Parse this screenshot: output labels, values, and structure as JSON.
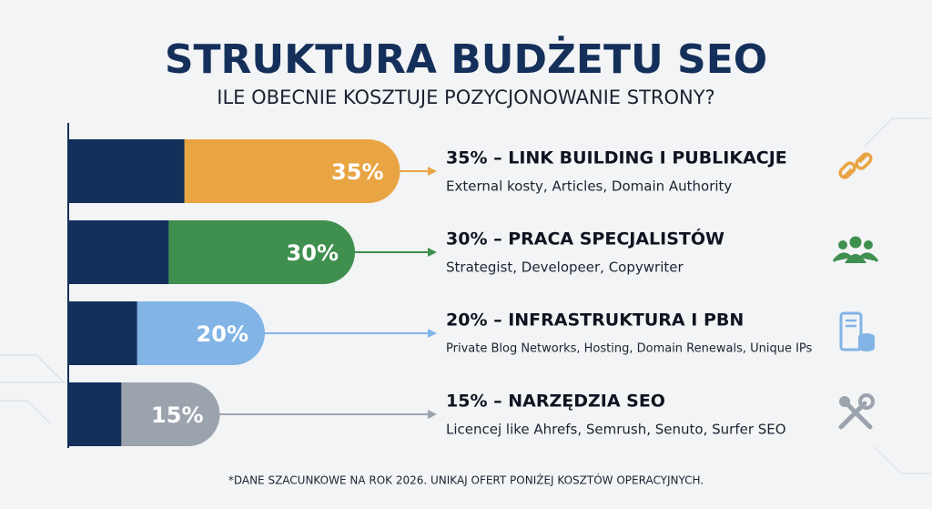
{
  "chart_data": {
    "type": "bar",
    "title": "STRUKTURA BUDŻETU SEO",
    "subtitle": "ILE OBECNIE KOSZTUJE POZYCJONOWANIE STRONY?",
    "categories": [
      "35% – LINK BUILDING I PUBLIKACJE",
      "30% – PRACA SPECJALISTÓW",
      "20% – INFRASTRUKTURA I PBN",
      "15% – NARZĘDZIA SEO"
    ],
    "descriptions": [
      "External kosty, Articles, Domain Authority",
      "Strategist, Developeer, Copywriter",
      "Private Blog Networks, Hosting, Domain Renewals, Unique IPs",
      "Licencej like Ahrefs, Semrush, Senuto, Surfer SEO"
    ],
    "values": [
      35,
      30,
      20,
      15
    ],
    "value_labels": [
      "35%",
      "30%",
      "20%",
      "15%"
    ],
    "colors": [
      "#e9a543",
      "#3f8f4e",
      "#82b4e6",
      "#9ba3ad"
    ],
    "base_color": "#14305a",
    "footnote": "*DANE SZACUNKOWE NA ROK 2026. UNIKAJ OFERT PONIŻEJ KOSZTÓW OPERACYJNYCH."
  }
}
